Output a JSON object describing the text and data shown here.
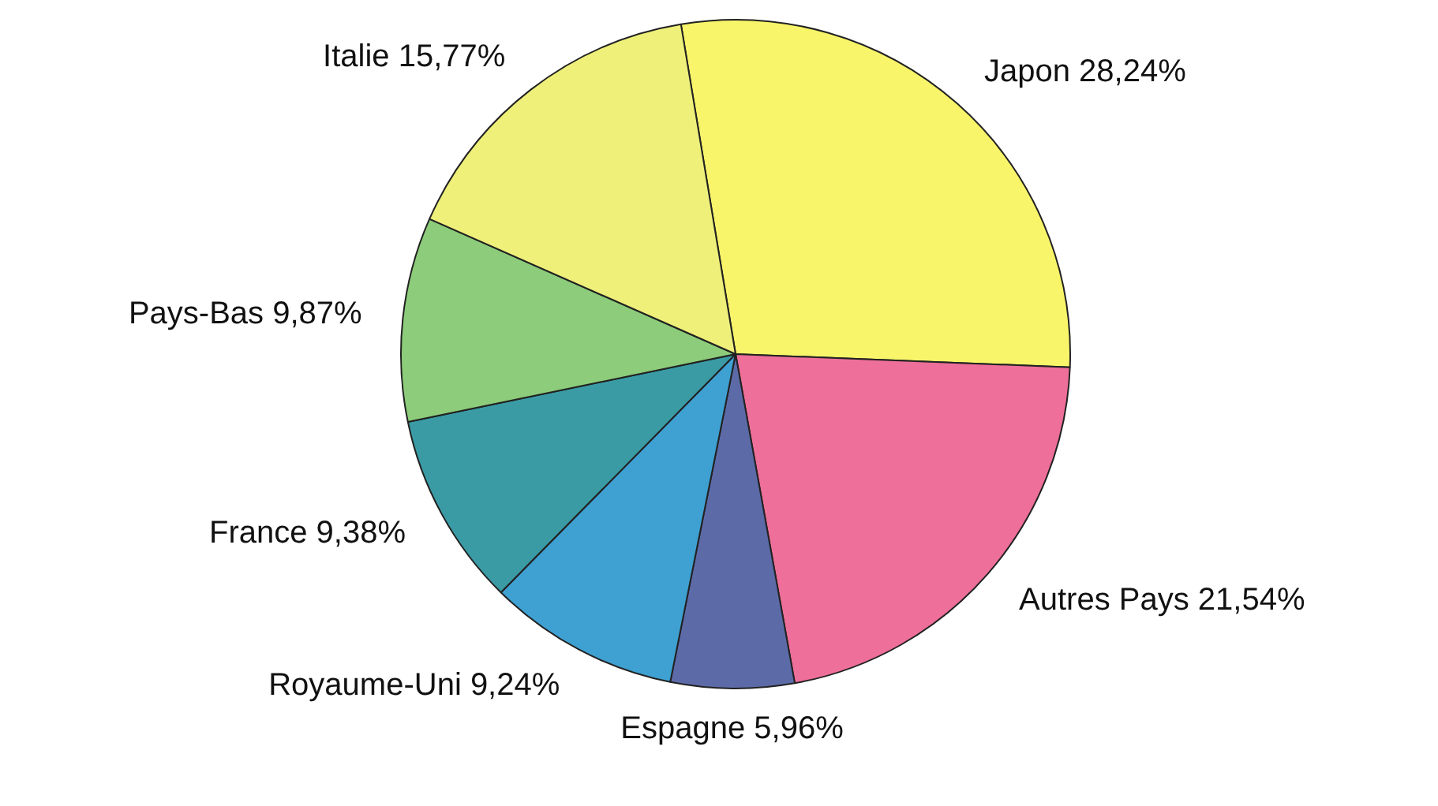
{
  "chart_data": {
    "type": "pie",
    "categories": [
      "Japon",
      "Autres Pays",
      "Espagne",
      "Royaume-Uni",
      "France",
      "Pays-Bas",
      "Italie"
    ],
    "values": [
      28.24,
      21.54,
      5.96,
      9.24,
      9.38,
      9.87,
      15.77
    ],
    "value_labels": [
      "28,24%",
      "21,54%",
      "5,96%",
      "9,24%",
      "9,38%",
      "9,87%",
      "15,77%"
    ],
    "colors": [
      "#f8f56a",
      "#ee6f9a",
      "#5c6ba8",
      "#3fa0d2",
      "#3a9ba5",
      "#8ccc7a",
      "#eef07a"
    ],
    "legend": false
  }
}
